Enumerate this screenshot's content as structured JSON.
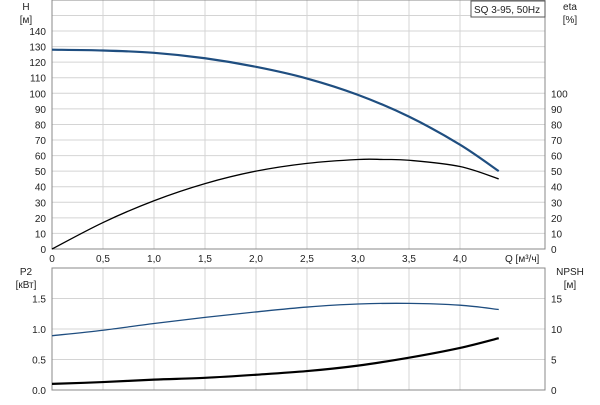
{
  "chart_data": [
    {
      "type": "line",
      "title": "SQ 3-95, 50Hz",
      "xlabel": "Q [м³/ч]",
      "ylabel": "H\n[м]",
      "ylabel_unit": "[м]",
      "ylabel_name": "H",
      "y2label_name": "eta",
      "y2label_unit": "[%]",
      "xlim": [
        0,
        4.75
      ],
      "ylim": [
        0,
        150
      ],
      "y2lim": [
        0,
        150
      ],
      "xticks": [
        "0",
        "0,5",
        "1,0",
        "1,5",
        "2,0",
        "2,5",
        "3,0",
        "3,5",
        "4,0"
      ],
      "yticks": [
        0,
        10,
        20,
        30,
        40,
        50,
        60,
        70,
        80,
        90,
        100,
        110,
        120,
        130,
        140
      ],
      "y2ticks": [
        0,
        10,
        20,
        30,
        40,
        50,
        60,
        70,
        80,
        90,
        100
      ],
      "grid": true,
      "series": [
        {
          "name": "H",
          "color": "#1f4e80",
          "x": [
            0,
            0.5,
            1.0,
            1.5,
            2.0,
            2.5,
            3.0,
            3.5,
            4.0,
            4.38
          ],
          "y": [
            128,
            127.5,
            126,
            122.5,
            117,
            109.5,
            99,
            85,
            67,
            50
          ]
        },
        {
          "name": "eta",
          "color": "#000000",
          "x": [
            0,
            0.5,
            1.0,
            1.5,
            2.0,
            2.5,
            3.0,
            3.25,
            3.5,
            4.0,
            4.38
          ],
          "y": [
            0,
            17,
            31,
            42,
            50,
            55,
            57.5,
            57.5,
            57,
            53,
            45
          ]
        }
      ]
    },
    {
      "type": "line",
      "ylabel_name": "P2",
      "ylabel_unit": "[кВт]",
      "y2label_name": "NPSH",
      "y2label_unit": "[м]",
      "xlim": [
        0,
        4.75
      ],
      "ylim": [
        0,
        2.0
      ],
      "y2lim": [
        0,
        20
      ],
      "yticks": [
        "0.0",
        "0.5",
        "1.0",
        "1.5"
      ],
      "y2ticks": [
        "0",
        "5",
        "10",
        "15"
      ],
      "grid": true,
      "series": [
        {
          "name": "P2",
          "color": "#1f4e80",
          "x": [
            0,
            0.5,
            1.0,
            1.5,
            2.0,
            2.5,
            3.0,
            3.5,
            4.0,
            4.38
          ],
          "y": [
            0.89,
            0.98,
            1.09,
            1.19,
            1.28,
            1.36,
            1.41,
            1.42,
            1.39,
            1.32
          ]
        },
        {
          "name": "NPSH",
          "color": "#000000",
          "x": [
            0,
            0.5,
            1.0,
            1.5,
            2.0,
            2.5,
            3.0,
            3.5,
            4.0,
            4.38
          ],
          "y": [
            1.0,
            1.3,
            1.7,
            2.0,
            2.5,
            3.1,
            4.0,
            5.3,
            6.9,
            8.5
          ]
        }
      ]
    }
  ]
}
